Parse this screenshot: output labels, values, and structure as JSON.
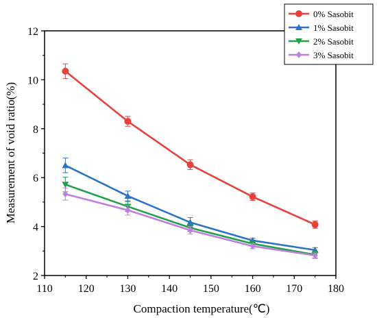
{
  "chart_data": {
    "type": "line",
    "xlabel": "Compaction temperature(℃)",
    "ylabel": "Measurement of void ratio(%)",
    "xlim": [
      110,
      180
    ],
    "ylim": [
      2,
      12
    ],
    "xticks": [
      110,
      120,
      130,
      140,
      150,
      160,
      170,
      180
    ],
    "yticks": [
      2,
      4,
      6,
      8,
      10,
      12
    ],
    "grid": false,
    "legend_position": "top-right",
    "x": [
      115,
      130,
      145,
      160,
      175
    ],
    "series": [
      {
        "name": "0% Sasobit",
        "color": "#e8413c",
        "marker": "circle",
        "values": [
          10.35,
          8.3,
          6.53,
          5.22,
          4.08
        ],
        "errors": [
          0.3,
          0.2,
          0.2,
          0.15,
          0.15
        ]
      },
      {
        "name": "1% Sasobit",
        "color": "#2b73c8",
        "marker": "triangle-up",
        "values": [
          6.5,
          5.25,
          4.17,
          3.43,
          3.04
        ],
        "errors": [
          0.3,
          0.2,
          0.2,
          0.1,
          0.1
        ]
      },
      {
        "name": "2% Sasobit",
        "color": "#22a04a",
        "marker": "triangle-down",
        "values": [
          5.72,
          4.82,
          3.95,
          3.3,
          2.85
        ],
        "errors": [
          0.3,
          0.2,
          0.15,
          0.1,
          0.15
        ]
      },
      {
        "name": "3% Sasobit",
        "color": "#c07ee0",
        "marker": "diamond",
        "values": [
          5.33,
          4.67,
          3.85,
          3.2,
          2.82
        ],
        "errors": [
          0.25,
          0.2,
          0.15,
          0.1,
          0.1
        ]
      }
    ]
  }
}
